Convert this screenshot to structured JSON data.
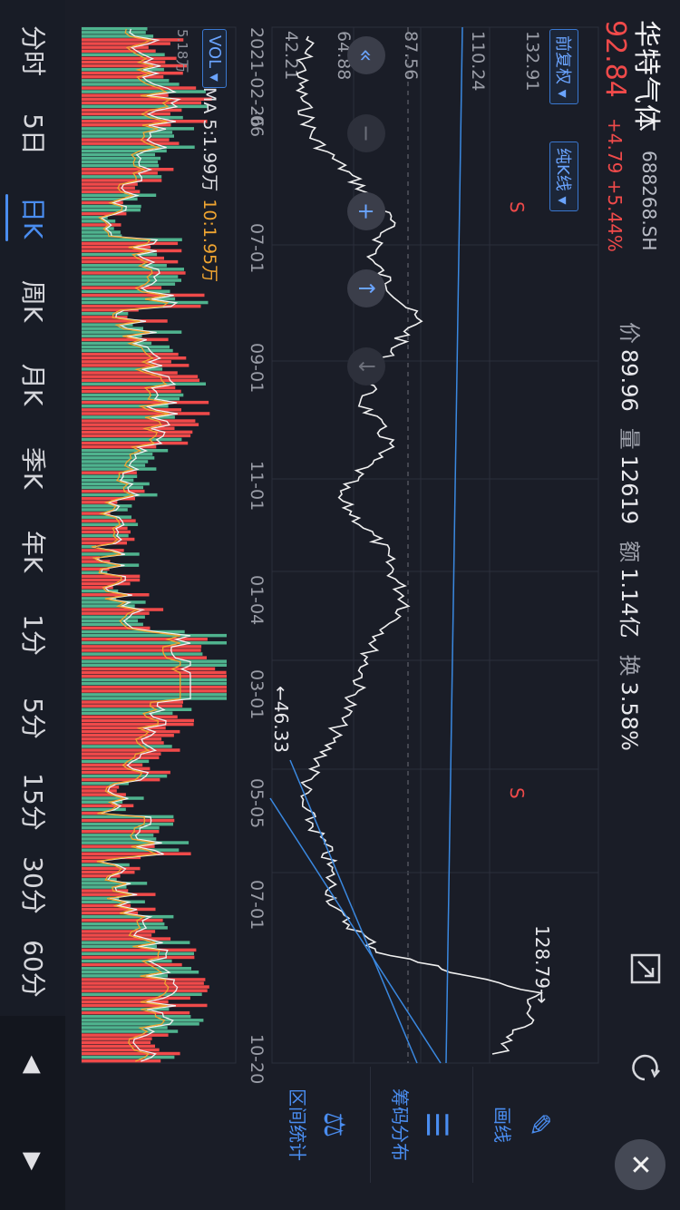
{
  "header": {
    "name": "华特气体",
    "code": "688268.SH",
    "price": "92.84",
    "change": "+4.79 +5.44%",
    "stats": [
      {
        "label": "价",
        "value": "89.96"
      },
      {
        "label": "量",
        "value": "12619"
      },
      {
        "label": "额",
        "value": "1.14亿"
      },
      {
        "label": "换",
        "value": "3.58%"
      }
    ]
  },
  "toolbar": {
    "adjust_label": "前复权",
    "chart_mode_label": "纯K线",
    "fullscreen_icon": "expand-icon",
    "refresh_icon": "refresh-icon"
  },
  "price_axis": [
    "132.91",
    "110.24",
    "87.56",
    "64.88",
    "42.21"
  ],
  "date_axis": [
    "2021-02-26",
    "-06",
    "07-01",
    "09-01",
    "11-01",
    "01-04",
    "03-01",
    "05-05",
    "07-01",
    "10-20"
  ],
  "annotations": {
    "high_label": "128.79→",
    "low_label": "←46.33",
    "signal_1": "S",
    "signal_2": "S"
  },
  "volume": {
    "selector_label": "VOL",
    "max_label": "5.18万",
    "ma5_label": "MA 5:1.99万",
    "ma10_label": "10:1.95万"
  },
  "side_tools": [
    {
      "label": "画线",
      "icon": "draw-line-icon"
    },
    {
      "label": "筹码分布",
      "icon": "chip-distribution-icon"
    },
    {
      "label": "区间统计",
      "icon": "range-stats-icon"
    }
  ],
  "periods": [
    "分时",
    "5日",
    "日K",
    "周K",
    "月K",
    "季K",
    "年K",
    "1分",
    "5分",
    "15分",
    "30分",
    "60分"
  ],
  "active_period": "日K",
  "colors": {
    "up": "#f04a4a",
    "down": "#4fb38e",
    "accent": "#4a8df0",
    "ma10": "#f0a531"
  }
}
